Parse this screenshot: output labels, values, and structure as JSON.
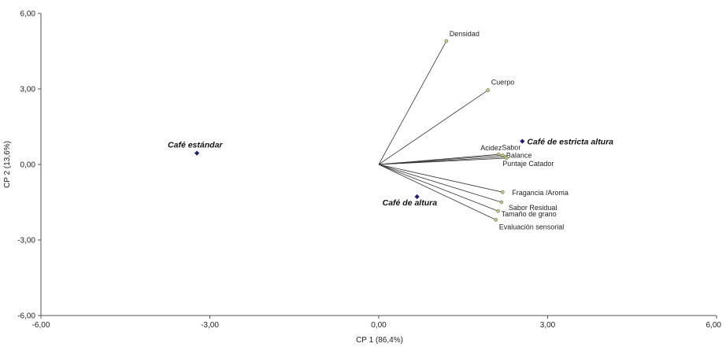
{
  "chart_data": {
    "type": "scatter",
    "subtype": "biplot",
    "title": "",
    "xlabel": "CP 1 (86,4%)",
    "ylabel": "CP 2 (13,6%)",
    "xlim": [
      -6,
      6
    ],
    "ylim": [
      -6,
      6
    ],
    "x_ticks": [
      -6,
      -3,
      0,
      3,
      6
    ],
    "y_ticks": [
      -6,
      -3,
      0,
      3,
      6
    ],
    "x_tick_labels": [
      "-6,00",
      "-3,00",
      "0,00",
      "3,00",
      "6,00"
    ],
    "y_tick_labels": [
      "-6,00",
      "-3,00",
      "0,00",
      "3,00",
      "6,00"
    ],
    "grid": false,
    "observations": [
      {
        "label": "Café estándar",
        "x": -3.23,
        "y": 0.45
      },
      {
        "label": "Café de estricta altura",
        "x": 2.55,
        "y": 0.92
      },
      {
        "label": "Café de altura",
        "x": 0.68,
        "y": -1.28
      }
    ],
    "variables": [
      {
        "label": "Densidad",
        "x": 1.2,
        "y": 4.9
      },
      {
        "label": "Cuerpo",
        "x": 1.94,
        "y": 2.95
      },
      {
        "label": "Acidez",
        "x": 2.13,
        "y": 0.4
      },
      {
        "label": "Sabor",
        "x": 2.2,
        "y": 0.36
      },
      {
        "label": "Balance",
        "x": 2.25,
        "y": 0.3
      },
      {
        "label": "Puntaje Catador",
        "x": 2.27,
        "y": 0.25
      },
      {
        "label": "Fragancia /Aroma",
        "x": 2.2,
        "y": -1.1
      },
      {
        "label": "Sabor Residual",
        "x": 2.18,
        "y": -1.5
      },
      {
        "label": "Tamaño de grano",
        "x": 2.12,
        "y": -1.85
      },
      {
        "label": "Evaluación sensorial",
        "x": 2.08,
        "y": -2.2
      }
    ],
    "colors": {
      "observation": "#1f1f7a",
      "variable_point": "#c8c890",
      "line": "#333333",
      "axis": "#555555"
    }
  }
}
